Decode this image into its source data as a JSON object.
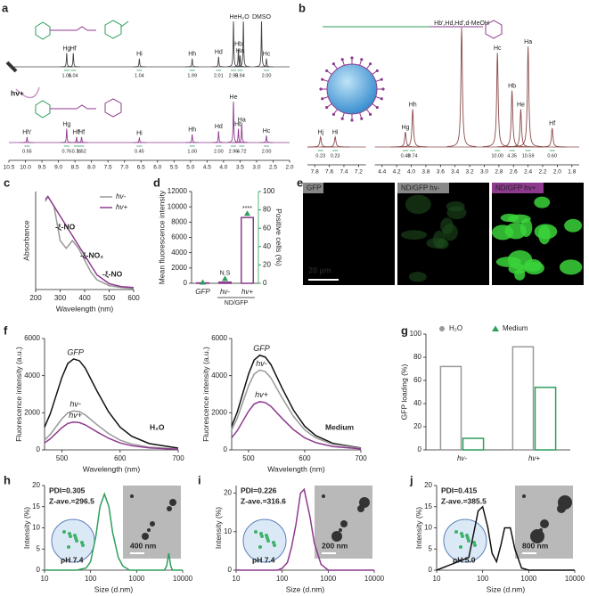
{
  "chart_data": [
    {
      "type": "spectrum",
      "panel": "a",
      "xlim": [
        10.5,
        2.0
      ],
      "label_color": "#2e9e6e",
      "xticks": [
        10.5,
        {
          "value": 10,
          "label": "10.0"
        },
        9.5,
        {
          "value": 9,
          "label": "9.0"
        },
        8.5,
        {
          "value": 8,
          "label": "8.0"
        },
        7.5,
        {
          "value": 7,
          "label": "7.0"
        },
        6.5,
        {
          "value": 6,
          "label": "6.0"
        },
        5.5,
        {
          "value": 5,
          "label": "5.0"
        },
        4.5,
        {
          "value": 4,
          "label": "4.0"
        },
        3.5,
        {
          "value": 3,
          "label": "3.0"
        },
        2.5,
        {
          "value": 2,
          "label": "2.0"
        }
      ],
      "annotations": [
        {
          "text": "hv+",
          "color": "#8e3a8e"
        }
      ],
      "traces": [
        {
          "color": "#444444",
          "peaks": [
            {
              "label": "Hg",
              "x": 8.75,
              "height": 30,
              "integral": "1.06"
            },
            {
              "label": "Hf",
              "x": 8.55,
              "height": 30,
              "integral": "1.04"
            },
            {
              "label": "Hi",
              "x": 6.55,
              "height": 18,
              "integral": "1.04"
            },
            {
              "label": "Hh",
              "x": 4.95,
              "height": 18,
              "integral": "1.99"
            },
            {
              "label": "Hd",
              "x": 4.15,
              "height": 22,
              "integral": "2.01"
            },
            {
              "label": "He",
              "x": 3.7,
              "height": 100,
              "integral": "2.98"
            },
            {
              "label": "H₂O",
              "x": 3.4,
              "height": 100,
              "integral": null
            },
            {
              "label": "DMSO",
              "x": 2.85,
              "height": 100,
              "integral": null
            },
            {
              "label": "Hb",
              "x": 3.55,
              "height": 40,
              "integral": null
            },
            {
              "label": "Ha",
              "x": 3.5,
              "height": 25,
              "integral": "5.94"
            },
            {
              "label": "Hc",
              "x": 2.7,
              "height": 18,
              "integral": "2.00"
            }
          ]
        },
        {
          "color": "#8e3a8e",
          "peaks": [
            {
              "label": "Hh'",
              "x": 9.95,
              "height": 12,
              "integral": "0.55"
            },
            {
              "label": "Hg",
              "x": 8.75,
              "height": 30,
              "integral": "0.76"
            },
            {
              "label": "Hf'",
              "x": 8.45,
              "height": 12,
              "integral": "0.76"
            },
            {
              "label": "Hf",
              "x": 8.3,
              "height": 12,
              "integral": "1.52"
            },
            {
              "label": "Hi",
              "x": 6.55,
              "height": 10,
              "integral": "0.45"
            },
            {
              "label": "Hh",
              "x": 4.95,
              "height": 18,
              "integral": "1.00"
            },
            {
              "label": "Hd",
              "x": 4.15,
              "height": 25,
              "integral": "2.00"
            },
            {
              "label": "He",
              "x": 3.7,
              "height": 90,
              "integral": "2.96"
            },
            {
              "label": "Hb",
              "x": 3.55,
              "height": 30,
              "integral": null
            },
            {
              "label": "Ha",
              "x": 3.45,
              "height": 40,
              "integral": "4.72"
            },
            {
              "label": "Hc",
              "x": 2.7,
              "height": 15,
              "integral": "2.00"
            }
          ]
        }
      ]
    },
    {
      "type": "spectrum",
      "panel": "b",
      "xlim": [
        [
          7.9,
          7.1
        ],
        [
          4.5,
          1.7
        ]
      ],
      "label_color": "#2e9e6e",
      "xticks": [
        7.8,
        7.6,
        7.4,
        7.2,
        4.4,
        4.2,
        {
          "value": 4,
          "label": "4.0"
        },
        3.8,
        3.6,
        3.4,
        3.2,
        {
          "value": 3,
          "label": "3.0"
        },
        2.8,
        2.6,
        2.4,
        2.2,
        {
          "value": 2,
          "label": "2.0"
        },
        1.8
      ],
      "traces": [
        {
          "color": "#8b4a4a",
          "peaks": [
            {
              "label": "Hj",
              "x": 7.72,
              "height": 8,
              "integral": "0.23"
            },
            {
              "label": "Hi",
              "x": 7.52,
              "height": 8,
              "integral": "0.23"
            },
            {
              "label": "Hg",
              "x": 4.08,
              "height": 12,
              "integral": "0.48"
            },
            {
              "label": "Hh",
              "x": 3.98,
              "height": 30,
              "integral": "0.74"
            },
            {
              "label": "Hb',Hd,Hd',d-MeOH",
              "x": 3.31,
              "height": 95,
              "integral": null
            },
            {
              "label": "Hc",
              "x": 2.82,
              "height": 75,
              "integral": "10.00"
            },
            {
              "label": "Hb",
              "x": 2.62,
              "height": 45,
              "integral": "4.35"
            },
            {
              "label": "He",
              "x": 2.5,
              "height": 30,
              "integral": null
            },
            {
              "label": "Ha",
              "x": 2.4,
              "height": 80,
              "integral": "10.59"
            },
            {
              "label": "Hf",
              "x": 2.07,
              "height": 15,
              "integral": "0.60"
            }
          ]
        }
      ]
    },
    {
      "type": "line",
      "panel": "c",
      "xlabel": "Wavelength (nm)",
      "ylabel": "Absorbance",
      "xlim": [
        200,
        600
      ],
      "xticks": [
        200,
        300,
        400,
        500,
        600
      ],
      "ylim": [
        0,
        1
      ],
      "legend": "upper right",
      "x": [
        240,
        250,
        275,
        300,
        325,
        350,
        375,
        400,
        425,
        450,
        500,
        550,
        600
      ],
      "series": [
        {
          "name": "hv-",
          "color": "#999999",
          "values": [
            0.9,
            0.95,
            0.85,
            0.5,
            0.42,
            0.5,
            0.42,
            0.3,
            0.18,
            0.1,
            0.04,
            0.02,
            0.01
          ]
        },
        {
          "name": "hv+",
          "color": "#8e3a8e",
          "values": [
            0.92,
            0.95,
            0.85,
            0.75,
            0.65,
            0.55,
            0.45,
            0.35,
            0.25,
            0.15,
            0.06,
            0.03,
            0.02
          ]
        }
      ],
      "annotations": [
        {
          "text": "-ξ-NO",
          "color": "#8e3a8e"
        },
        {
          "text": "-ξ-NO₂",
          "color": "#666666"
        },
        {
          "text": "-ξ-NO",
          "color": "#8e3a8e"
        }
      ]
    },
    {
      "type": "bar",
      "panel": "d",
      "ylabel": "Mean fluorescence intensity",
      "y2label": "Positive cells (%)",
      "categories": [
        "GFP",
        "hv-",
        "hv+"
      ],
      "group_label": "ND/GFP",
      "ylim": [
        0,
        12000
      ],
      "yticks": [
        0,
        2000,
        4000,
        6000,
        8000,
        10000,
        12000
      ],
      "y2lim": [
        0,
        100
      ],
      "y2ticks": [
        0,
        20,
        40,
        60,
        80,
        100
      ],
      "series": [
        {
          "color": "#8e3a8e",
          "values": [
            50,
            150,
            8600
          ]
        },
        {
          "color": "#2e9e5b",
          "axis": "y2",
          "marker": "triangle",
          "values": [
            1,
            5,
            76
          ]
        }
      ],
      "significance": [
        null,
        "N.S",
        "****"
      ]
    },
    {
      "type": "image",
      "panel": "e",
      "panels": [
        "GFP",
        "ND/GFP hv-",
        "ND/GFP hv+"
      ],
      "colors": [
        "#888888",
        "#888888",
        "#8e3a8e"
      ],
      "scale_bar": "20 µm"
    },
    {
      "type": "line",
      "panel": "f",
      "xlabel": "Wavelength (nm)",
      "ylabel": "Fluorescence intensity (a.u.)",
      "xlim": [
        470,
        700
      ],
      "xticks": [
        500,
        600,
        700
      ],
      "ylim": [
        0,
        6000
      ],
      "yticks": [
        0,
        2000,
        4000,
        6000
      ],
      "series_labels": "inline",
      "x": [
        470,
        480,
        500,
        510,
        520,
        530,
        540,
        560,
        580,
        600,
        620,
        650,
        700
      ],
      "series": [
        {
          "name": "GFP",
          "color": "#111111",
          "values": [
            1225,
            1960,
            3920,
            4655,
            4900,
            4802,
            4410,
            3185,
            2058,
            1225,
            735,
            343,
            98
          ]
        },
        {
          "name": "hv-",
          "color": "#999999",
          "values": [
            525,
            840,
            1680,
            1995,
            2100,
            2058,
            1890,
            1365,
            882,
            525,
            315,
            147,
            42
          ]
        },
        {
          "name": "hv+",
          "color": "#8e3a8e",
          "values": [
            375,
            600,
            1200,
            1425,
            1500,
            1470,
            1350,
            975,
            630,
            375,
            225,
            105,
            30
          ]
        }
      ],
      "annotations": [
        {
          "text": "H₂O",
          "color": "#111111"
        }
      ]
    },
    {
      "type": "line",
      "xlabel": "Wavelength (nm)",
      "ylabel": "Fluorescence intensity (a.u.)",
      "xlim": [
        470,
        700
      ],
      "xticks": [
        500,
        600,
        700
      ],
      "ylim": [
        0,
        6000
      ],
      "yticks": [
        0,
        2000,
        4000,
        6000
      ],
      "series_labels": "inline",
      "x": [
        470,
        480,
        500,
        510,
        520,
        530,
        540,
        560,
        580,
        600,
        620,
        650,
        700
      ],
      "series": [
        {
          "name": "GFP",
          "color": "#111111",
          "values": [
            1275,
            2040,
            4080,
            4845,
            5100,
            4998,
            4590,
            3315,
            2142,
            1275,
            765,
            357,
            102
          ]
        },
        {
          "name": "hv-",
          "color": "#999999",
          "values": [
            1075,
            1720,
            3440,
            4085,
            4300,
            4214,
            3870,
            2795,
            1806,
            1075,
            645,
            301,
            86
          ]
        },
        {
          "name": "hv+",
          "color": "#8e3a8e",
          "values": [
            650,
            1040,
            2080,
            2470,
            2600,
            2548,
            2340,
            1690,
            1092,
            650,
            390,
            182,
            52
          ]
        }
      ],
      "annotations": [
        {
          "text": "Medium",
          "color": "#111111"
        }
      ]
    },
    {
      "type": "bar",
      "panel": "g",
      "ylabel": "GFP loading (%)",
      "categories": [
        "hv-",
        "hv+"
      ],
      "ylim": [
        0,
        100
      ],
      "yticks": [
        0,
        20,
        40,
        60,
        80,
        100
      ],
      "legend": "top",
      "series": [
        {
          "name": "H₂O",
          "color": "#999999",
          "legend_marker": "circle",
          "values": [
            72,
            89
          ]
        },
        {
          "name": "Medium",
          "color": "#2e9e5b",
          "legend_marker": "triangle",
          "values": [
            10,
            54
          ]
        }
      ]
    },
    {
      "type": "line",
      "panel": "h",
      "xlabel": "Size (d.nm)",
      "ylabel": "Intensity (%)",
      "xlog": true,
      "xlim": [
        10,
        10000
      ],
      "xticks": [
        10,
        100,
        1000,
        10000
      ],
      "ylim": [
        0,
        20
      ],
      "yticks": [
        0,
        5,
        10,
        15,
        20
      ],
      "x": [
        10,
        50,
        80,
        100,
        130,
        160,
        200,
        250,
        300,
        400,
        500,
        700,
        1000,
        2000,
        3000,
        4000,
        4500,
        5000,
        5500,
        6000,
        7000,
        10000
      ],
      "series": [
        {
          "color": "#2e9e5b",
          "values": [
            0,
            0,
            0.5,
            2,
            8,
            15,
            18,
            15,
            9,
            3,
            1,
            0,
            0,
            0,
            0,
            0,
            1,
            4,
            1,
            0,
            0,
            0
          ]
        }
      ],
      "annotations": [
        {
          "text": "PDI=0.305",
          "color": "#111111"
        },
        {
          "text": "Z-ave.=296.5",
          "color": "#111111"
        },
        {
          "text": "pH 7.4",
          "color": "#2a4a9a"
        },
        {
          "text": "400 nm",
          "color": "#ffffff"
        }
      ]
    },
    {
      "type": "line",
      "panel": "i",
      "xlabel": "Size (d.nm)",
      "ylabel": "Intensity (%)",
      "xlog": true,
      "xlim": [
        10,
        10000
      ],
      "xticks": [
        10,
        100,
        1000,
        10000
      ],
      "ylim": [
        0,
        22
      ],
      "yticks": [
        0,
        10,
        20
      ],
      "x": [
        10,
        50,
        80,
        100,
        130,
        160,
        200,
        250,
        300,
        400,
        500,
        700,
        1000,
        2000,
        3000,
        4000,
        4500,
        5000,
        5500,
        6000,
        7000,
        10000
      ],
      "series": [
        {
          "color": "#8e3a8e",
          "values": [
            0,
            0,
            0,
            0.5,
            2,
            6,
            12,
            20,
            21,
            14,
            7,
            1.5,
            0,
            0,
            0,
            0,
            0,
            0,
            0,
            0,
            0,
            0
          ]
        }
      ],
      "annotations": [
        {
          "text": "PDI=0.226",
          "color": "#111111"
        },
        {
          "text": "Z-ave.=316.6",
          "color": "#111111"
        },
        {
          "text": "pH 7.4",
          "color": "#2a4a9a"
        },
        {
          "text": "200 nm",
          "color": "#ffffff"
        }
      ]
    },
    {
      "type": "line",
      "panel": "j",
      "xlabel": "Size (d.nm)",
      "ylabel": "Intensity (%)",
      "xlog": true,
      "xlim": [
        10,
        10000
      ],
      "xticks": [
        10,
        100,
        1000,
        10000
      ],
      "ylim": [
        0,
        20
      ],
      "yticks": [
        0,
        5,
        10,
        15,
        20
      ],
      "x": [
        10,
        50,
        80,
        100,
        130,
        160,
        200,
        250,
        300,
        400,
        500,
        700,
        1000,
        2000,
        3000,
        4000,
        4500,
        5000,
        5500,
        6000,
        7000,
        10000
      ],
      "series": [
        {
          "color": "#111111",
          "values": [
            0,
            3,
            14,
            15,
            10,
            4,
            2,
            6,
            10,
            10,
            5,
            0.5,
            0,
            0,
            0,
            0,
            0,
            0,
            0,
            0,
            0,
            0
          ]
        }
      ],
      "annotations": [
        {
          "text": "PDI=0.415",
          "color": "#111111"
        },
        {
          "text": "Z-ave.=385.5",
          "color": "#111111"
        },
        {
          "text": "pH 5.0",
          "color": "#2a4a9a"
        },
        {
          "text": "800 nm",
          "color": "#ffffff"
        }
      ]
    }
  ]
}
